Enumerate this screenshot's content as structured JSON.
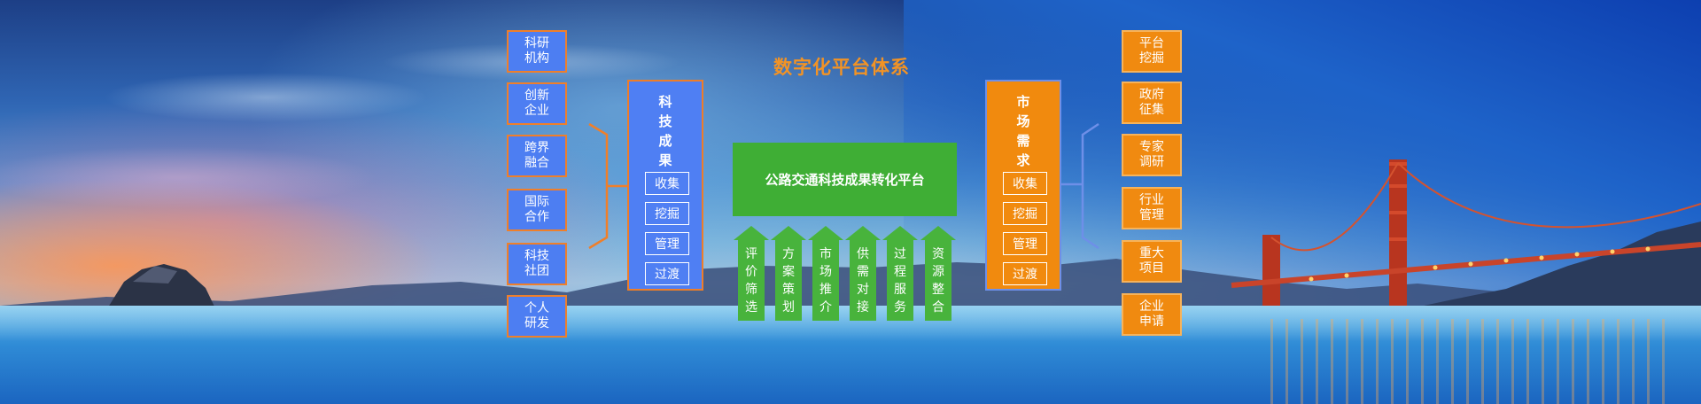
{
  "title": "数字化平台体系",
  "left_sources": [
    "科研\n机构",
    "创新\n企业",
    "跨界\n融合",
    "国际\n合作",
    "科技\n社团",
    "个人\n研发"
  ],
  "tech_column": {
    "title": "科\n技\n成\n果",
    "items": [
      "收集",
      "挖掘",
      "管理",
      "过渡"
    ]
  },
  "platform": {
    "label": "公路交通科技成果转化平台"
  },
  "services": [
    "评\n价\n筛\n选",
    "方\n案\n策\n划",
    "市\n场\n推\n介",
    "供\n需\n对\n接",
    "过\n程\n服\n务",
    "资\n源\n整\n合"
  ],
  "market_column": {
    "title": "市\n场\n需\n求",
    "items": [
      "收集",
      "挖掘",
      "管理",
      "过渡"
    ]
  },
  "right_sources": [
    "平台\n挖掘",
    "政府\n征集",
    "专家\n调研",
    "行业\n管理",
    "重大\n项目",
    "企业\n申请"
  ],
  "colors": {
    "blue_box": "#4d7ef2",
    "orange_box": "#f08a10",
    "platform_green": "#3fae35",
    "title_orange": "#f29325"
  }
}
